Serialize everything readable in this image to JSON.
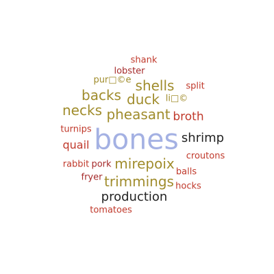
{
  "word_cloud": {
    "colors": {
      "red": "#c0392b",
      "dark_red": "#b03a2e",
      "olive": "#a08c2c",
      "blue": "#a4b1e3",
      "dark": "#222222"
    },
    "words": [
      {
        "text": "shank",
        "color": "#c0392b"
      },
      {
        "text": "lobster",
        "color": "#a52a2a"
      },
      {
        "text": "pur□©e",
        "color": "#a08c2c"
      },
      {
        "text": "shells",
        "color": "#a08c2c"
      },
      {
        "text": "split",
        "color": "#c0392b"
      },
      {
        "text": "backs",
        "color": "#a08c2c"
      },
      {
        "text": "duck",
        "color": "#a08c2c"
      },
      {
        "text": "li□©",
        "color": "#a08c2c"
      },
      {
        "text": "necks",
        "color": "#a08c2c"
      },
      {
        "text": "pheasant",
        "color": "#a08c2c"
      },
      {
        "text": "broth",
        "color": "#c0392b"
      },
      {
        "text": "turnips",
        "color": "#c0392b"
      },
      {
        "text": "bones",
        "color": "#a4b1e3"
      },
      {
        "text": "shrimp",
        "color": "#222222"
      },
      {
        "text": "quail",
        "color": "#c0392b"
      },
      {
        "text": "croutons",
        "color": "#c0392b"
      },
      {
        "text": "rabbit",
        "color": "#c0392b"
      },
      {
        "text": "pork",
        "color": "#a52a2a"
      },
      {
        "text": "mirepoix",
        "color": "#a08c2c"
      },
      {
        "text": "balls",
        "color": "#c0392b"
      },
      {
        "text": "fryer",
        "color": "#a52a2a"
      },
      {
        "text": "trimmings",
        "color": "#a08c2c"
      },
      {
        "text": "hocks",
        "color": "#c0392b"
      },
      {
        "text": "production",
        "color": "#222222"
      },
      {
        "text": "tomatoes",
        "color": "#c0392b"
      }
    ]
  }
}
